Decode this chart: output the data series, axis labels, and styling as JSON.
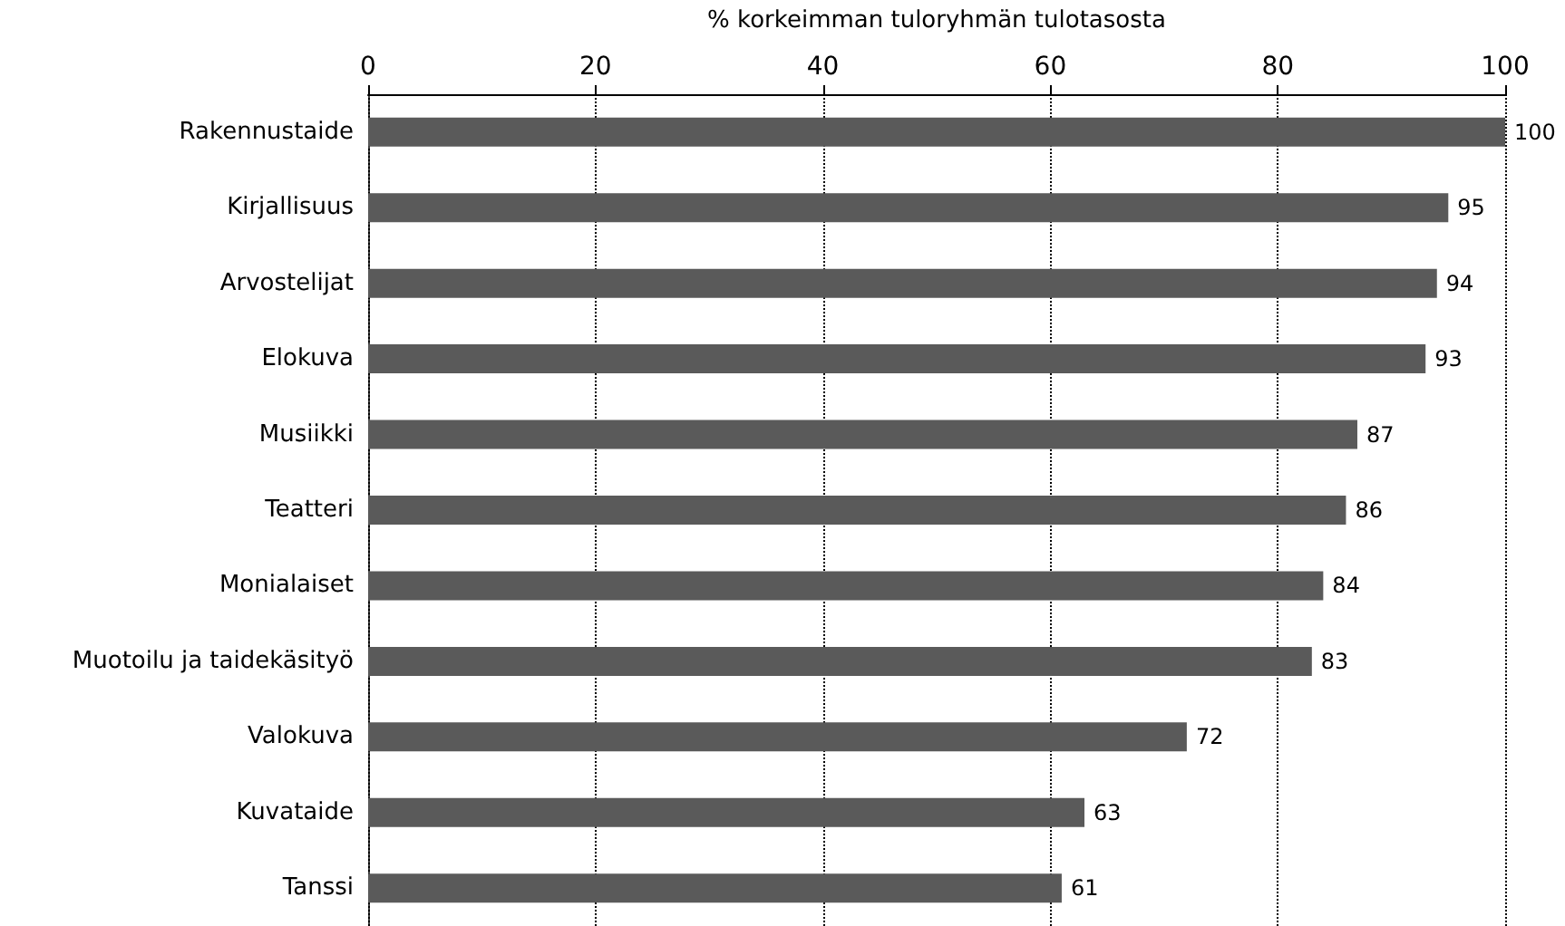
{
  "chart_data": {
    "type": "bar",
    "orientation": "horizontal",
    "xlabel": "% korkeimman tuloryhmän tulotasosta",
    "categories": [
      "Rakennustaide",
      "Kirjallisuus",
      "Arvostelijat",
      "Elokuva",
      "Musiikki",
      "Teatteri",
      "Monialaiset",
      "Muotoilu ja taidekäsityö",
      "Valokuva",
      "Kuvataide",
      "Tanssi"
    ],
    "values": [
      100,
      95,
      94,
      93,
      87,
      86,
      84,
      83,
      72,
      63,
      61
    ],
    "color": "#5a5a5a",
    "xlim": [
      0,
      100
    ],
    "xticks": [
      0,
      20,
      40,
      60,
      80,
      100
    ],
    "grid": "x",
    "data_labels": true
  }
}
